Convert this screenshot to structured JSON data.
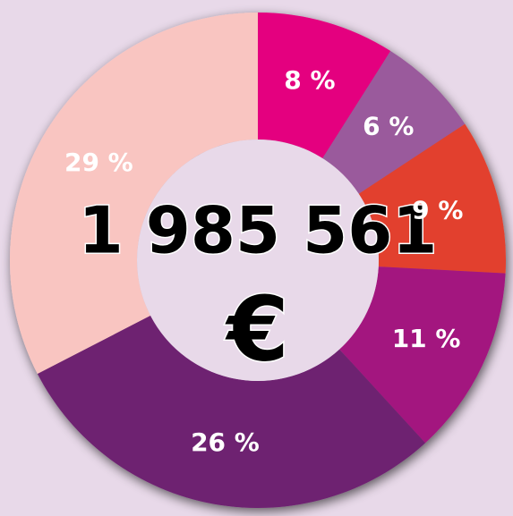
{
  "chart_data": {
    "type": "donut",
    "categories": [
      null,
      null,
      null,
      null,
      null,
      null
    ],
    "values": [
      8,
      6,
      9,
      11,
      26,
      29
    ],
    "value_labels": [
      "8 %",
      "6 %",
      "9 %",
      "11 %",
      "26 %",
      "29 %"
    ],
    "colors": [
      "#e4007f",
      "#9a5a9c",
      "#e2402e",
      "#a3177f",
      "#6e2171",
      "#f9c5c1"
    ],
    "center_text": [
      "1 985 561",
      "€"
    ]
  }
}
